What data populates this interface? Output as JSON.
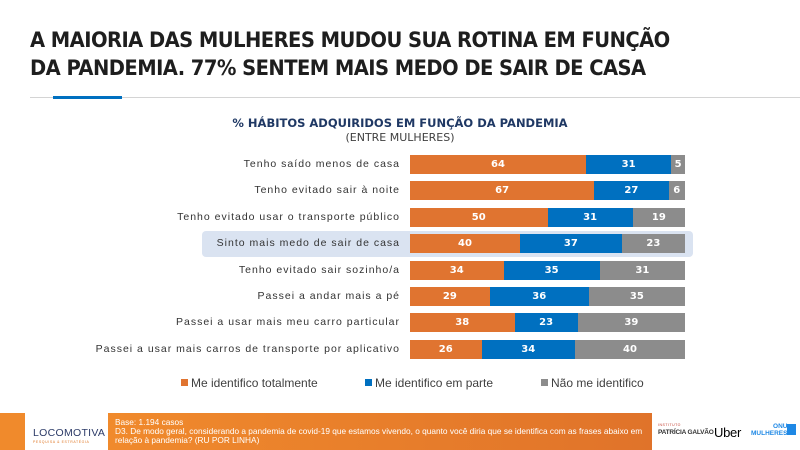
{
  "header": {
    "title_line1": "A MAIORIA DAS MULHERES MUDOU SUA ROTINA EM FUNÇÃO",
    "title_line2": "DA PANDEMIA. 77% SENTEM MAIS MEDO DE SAIR DE CASA"
  },
  "chart_data": {
    "type": "bar",
    "orientation": "horizontal-stacked-100",
    "title": "% HÁBITOS ADQUIRIDOS EM FUNÇÃO DA PANDEMIA",
    "subtitle": "(ENTRE MULHERES)",
    "categories": [
      "Tenho saído menos de casa",
      "Tenho evitado sair à noite",
      "Tenho evitado usar o transporte público",
      "Sinto mais medo de sair de casa",
      "Tenho evitado sair sozinho/a",
      "Passei a andar mais a pé",
      "Passei a usar mais meu carro particular",
      "Passei a usar mais carros de transporte por aplicativo"
    ],
    "highlighted_category": "Sinto mais medo de sair de casa",
    "series": [
      {
        "name": "Me identifico totalmente",
        "color": "#e07430",
        "values": [
          64,
          67,
          50,
          40,
          34,
          29,
          38,
          26
        ]
      },
      {
        "name": "Me identifico em parte",
        "color": "#0070c0",
        "values": [
          31,
          27,
          31,
          37,
          35,
          36,
          23,
          34
        ]
      },
      {
        "name": "Não me identifico",
        "color": "#8c8c8c",
        "values": [
          5,
          6,
          19,
          23,
          31,
          35,
          39,
          40
        ]
      }
    ],
    "xlim": [
      0,
      100
    ],
    "legend_position": "bottom"
  },
  "footer": {
    "logo_name": "LOCOMOTIVA",
    "logo_tagline": "PESQUISA & ESTRATÉGIA",
    "base": "Base: 1.194 casos",
    "question": "D3. De modo geral, considerando a pandemia de covid-19 que estamos vivendo, o quanto você diria que se identifica com as frases abaixo em relação à pandemia? (RU POR LINHA)",
    "partners": {
      "ipg_small": "INSTITUTO",
      "ipg_name": "PATRÍCIA GALVÃO",
      "uber": "Uber",
      "onu_line1": "ONU",
      "onu_line2": "MULHERES"
    }
  },
  "colors": {
    "accent_blue": "#0070c0",
    "orange": "#e07430",
    "gray": "#8c8c8c",
    "highlight": "#dae3f1"
  }
}
